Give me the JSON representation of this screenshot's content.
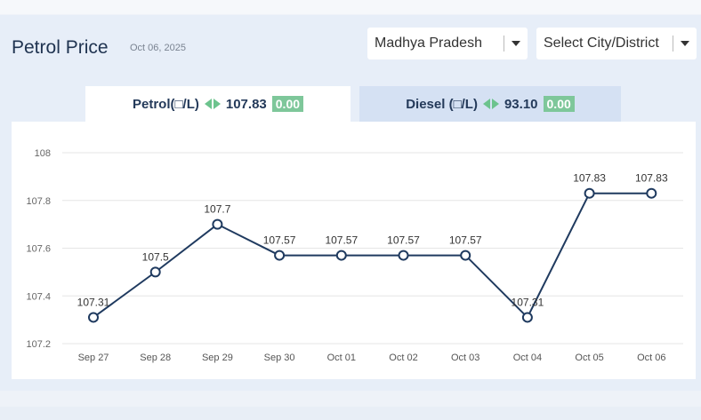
{
  "header": {
    "title": "Petrol Price",
    "date": "Oct 06, 2025"
  },
  "filters": {
    "state": "Madhya Pradesh",
    "city": "Select City/District"
  },
  "tabs": [
    {
      "label": "Petrol(□/L)",
      "price": "107.83",
      "change": "0.00",
      "active": true
    },
    {
      "label": "Diesel (□/L)",
      "price": "93.10",
      "change": "0.00",
      "active": false
    }
  ],
  "colors": {
    "line": "#1f3a5f",
    "badge": "#7ec79a",
    "arrow": "#6cc38d"
  },
  "chart_data": {
    "type": "line",
    "categories": [
      "Sep 27",
      "Sep 28",
      "Sep 29",
      "Sep 30",
      "Oct 01",
      "Oct 02",
      "Oct 03",
      "Oct 04",
      "Oct 05",
      "Oct 06"
    ],
    "values": [
      107.31,
      107.5,
      107.7,
      107.57,
      107.57,
      107.57,
      107.57,
      107.31,
      107.83,
      107.83
    ],
    "value_labels": [
      "107.31",
      "107.5",
      "107.7",
      "107.57",
      "107.57",
      "107.57",
      "107.57",
      "107.31",
      "107.83",
      "107.83"
    ],
    "yticks": [
      "107.2",
      "107.4",
      "107.6",
      "107.8",
      "108"
    ],
    "ylim": [
      107.2,
      108
    ],
    "grid": true
  }
}
